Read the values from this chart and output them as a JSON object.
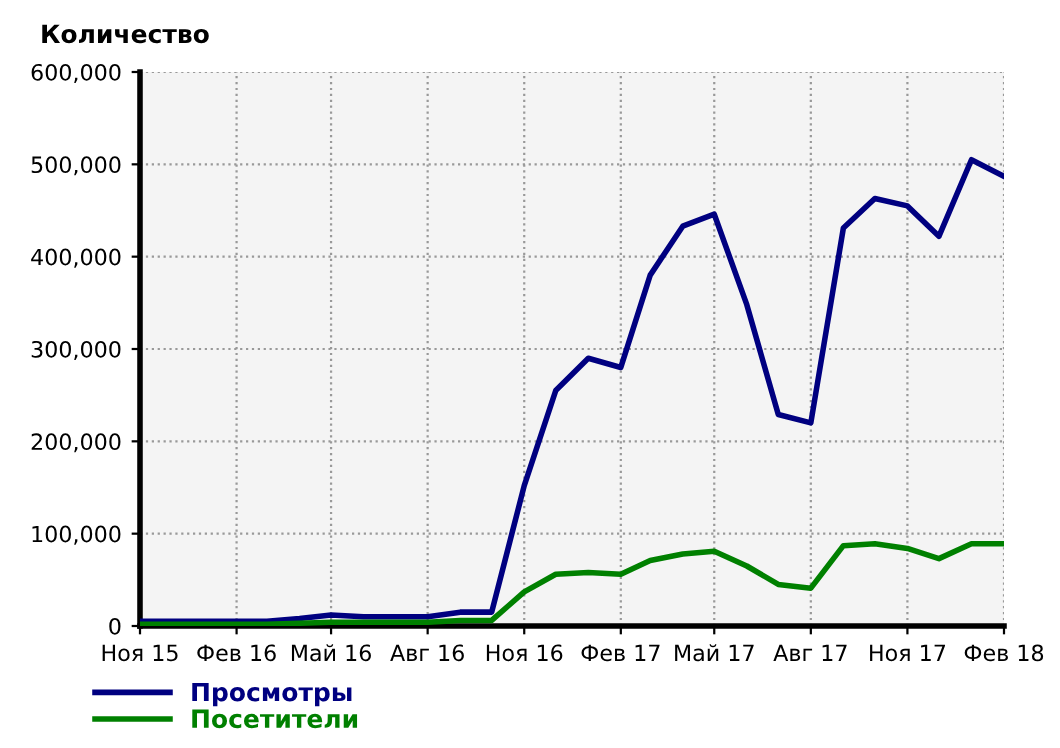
{
  "chart_data": {
    "type": "line",
    "title": "Количество",
    "x": [
      "2015-11",
      "2015-12",
      "2016-01",
      "2016-02",
      "2016-03",
      "2016-04",
      "2016-05",
      "2016-06",
      "2016-07",
      "2016-08",
      "2016-09",
      "2016-10",
      "2016-11",
      "2016-12",
      "2017-01",
      "2017-02",
      "2017-03",
      "2017-04",
      "2017-05",
      "2017-06",
      "2017-07",
      "2017-08",
      "2017-09",
      "2017-10",
      "2017-11",
      "2017-12",
      "2018-01",
      "2018-02"
    ],
    "series": [
      {
        "name": "Просмотры",
        "color": "#000080",
        "values": [
          5000,
          5000,
          5000,
          5000,
          5000,
          8000,
          12000,
          10000,
          10000,
          10000,
          15000,
          15000,
          152000,
          255000,
          290000,
          280000,
          380000,
          433000,
          446000,
          348000,
          229000,
          220000,
          431000,
          463000,
          455000,
          422000,
          505000,
          487000
        ]
      },
      {
        "name": "Посетители",
        "color": "#008000",
        "values": [
          2000,
          2000,
          2000,
          2000,
          2000,
          3000,
          4000,
          4000,
          4000,
          4000,
          6000,
          6000,
          37000,
          56000,
          58000,
          56000,
          71000,
          78000,
          81000,
          65000,
          45000,
          41000,
          87000,
          89000,
          84000,
          73000,
          89000,
          89000
        ]
      }
    ],
    "xlim": [
      "2015-11",
      "2018-02"
    ],
    "xticks": [
      {
        "value": "2015-11",
        "label": "Ноя 15"
      },
      {
        "value": "2016-02",
        "label": "Фев 16"
      },
      {
        "value": "2016-05",
        "label": "Май 16"
      },
      {
        "value": "2016-08",
        "label": "Авг 16"
      },
      {
        "value": "2016-11",
        "label": "Ноя 16"
      },
      {
        "value": "2017-02",
        "label": "Фев 17"
      },
      {
        "value": "2017-05",
        "label": "Май 17"
      },
      {
        "value": "2017-08",
        "label": "Авг 17"
      },
      {
        "value": "2017-11",
        "label": "Ноя 17"
      },
      {
        "value": "2018-02",
        "label": "Фев 18"
      }
    ],
    "ylim": [
      0,
      600000
    ],
    "yticks": [
      {
        "value": 0,
        "label": "0"
      },
      {
        "value": 100000,
        "label": "100,000"
      },
      {
        "value": 200000,
        "label": "200,000"
      },
      {
        "value": 300000,
        "label": "300,000"
      },
      {
        "value": 400000,
        "label": "400,000"
      },
      {
        "value": 500000,
        "label": "500,000"
      },
      {
        "value": 600000,
        "label": "600,000"
      }
    ],
    "grid": true,
    "legend": "bottom left",
    "marker": "none",
    "line_style": "solid"
  }
}
